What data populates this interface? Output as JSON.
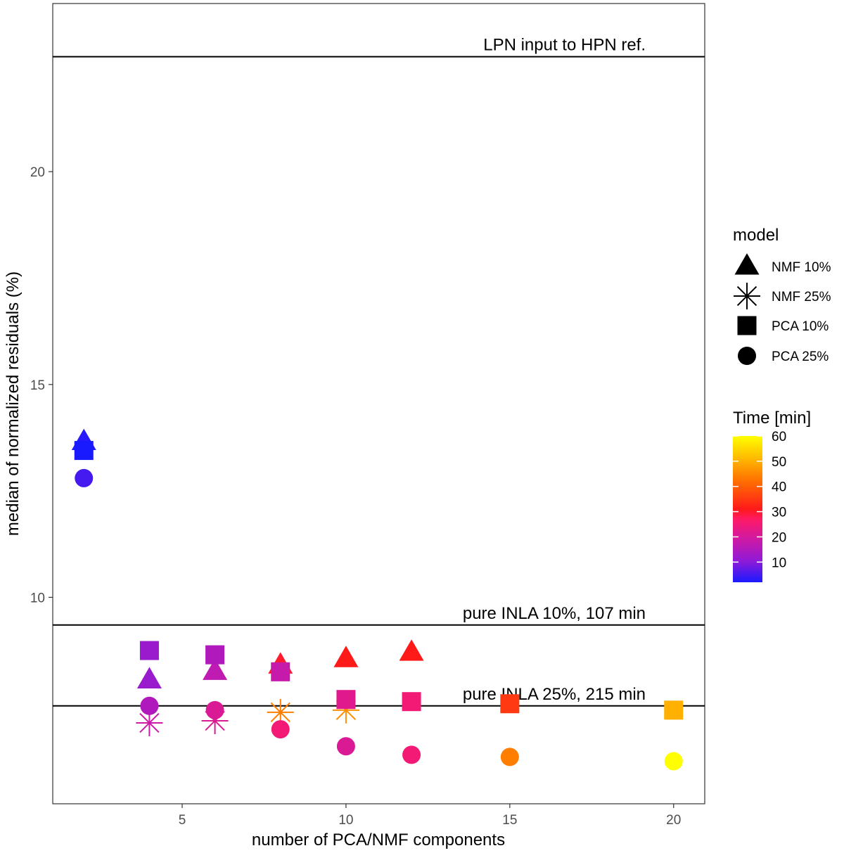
{
  "chart_data": {
    "type": "scatter",
    "xlabel": "number of PCA/NMF components",
    "ylabel": "median of normalized residuals (%)",
    "xlim": [
      1.05,
      20.95
    ],
    "ylim": [
      5.15,
      23.95
    ],
    "x_ticks": [
      5,
      10,
      15,
      20
    ],
    "y_ticks": [
      10,
      15,
      20
    ],
    "grid": false,
    "legend_placement": "right",
    "reference_lines": [
      {
        "y": 22.7,
        "label": "LPN input to HPN ref."
      },
      {
        "y": 9.35,
        "label": "pure INLA 10%, 107 min"
      },
      {
        "y": 7.45,
        "label": "pure INLA 25%, 215 min"
      }
    ],
    "shape_legend": {
      "title": "model",
      "entries": [
        {
          "label": "NMF 10%",
          "shape": "triangle"
        },
        {
          "label": "NMF 25%",
          "shape": "asterisk"
        },
        {
          "label": "PCA 10%",
          "shape": "square"
        },
        {
          "label": "PCA 25%",
          "shape": "circle"
        }
      ]
    },
    "color_legend": {
      "title": "Time [min]",
      "min": 2,
      "max": 60,
      "ticks": [
        10,
        20,
        30,
        40,
        50,
        60
      ],
      "colors": [
        "#1a1aff",
        "#8c1ad9",
        "#cc1aa6",
        "#ff1a66",
        "#ff1a1a",
        "#ff7300",
        "#ffbf00",
        "#ffff00"
      ]
    },
    "series": [
      {
        "name": "NMF 10%",
        "shape": "triangle",
        "points": [
          {
            "x": 2,
            "y": 13.65,
            "time": 3
          },
          {
            "x": 4,
            "y": 8.05,
            "time": 12
          },
          {
            "x": 6,
            "y": 8.25,
            "time": 17
          },
          {
            "x": 8,
            "y": 8.4,
            "time": 30
          },
          {
            "x": 10,
            "y": 8.55,
            "time": 31
          },
          {
            "x": 12,
            "y": 8.7,
            "time": 31
          }
        ]
      },
      {
        "name": "NMF 25%",
        "shape": "asterisk",
        "points": [
          {
            "x": 4,
            "y": 7.05,
            "time": 19
          },
          {
            "x": 6,
            "y": 7.1,
            "time": 21
          },
          {
            "x": 8,
            "y": 7.3,
            "time": 44
          },
          {
            "x": 10,
            "y": 7.35,
            "time": 46
          }
        ]
      },
      {
        "name": "PCA 10%",
        "shape": "square",
        "points": [
          {
            "x": 2,
            "y": 13.45,
            "time": 2
          },
          {
            "x": 4,
            "y": 8.75,
            "time": 12
          },
          {
            "x": 6,
            "y": 8.65,
            "time": 15
          },
          {
            "x": 8,
            "y": 8.25,
            "time": 18
          },
          {
            "x": 10,
            "y": 7.6,
            "time": 22
          },
          {
            "x": 12,
            "y": 7.55,
            "time": 25
          },
          {
            "x": 15,
            "y": 7.5,
            "time": 35
          },
          {
            "x": 20,
            "y": 7.35,
            "time": 50
          }
        ]
      },
      {
        "name": "PCA 25%",
        "shape": "circle",
        "points": [
          {
            "x": 2,
            "y": 12.8,
            "time": 5
          },
          {
            "x": 4,
            "y": 7.45,
            "time": 15
          },
          {
            "x": 6,
            "y": 7.35,
            "time": 21
          },
          {
            "x": 8,
            "y": 6.9,
            "time": 25
          },
          {
            "x": 10,
            "y": 6.5,
            "time": 21
          },
          {
            "x": 12,
            "y": 6.3,
            "time": 25
          },
          {
            "x": 15,
            "y": 6.25,
            "time": 44
          },
          {
            "x": 20,
            "y": 6.15,
            "time": 60
          }
        ]
      }
    ]
  }
}
